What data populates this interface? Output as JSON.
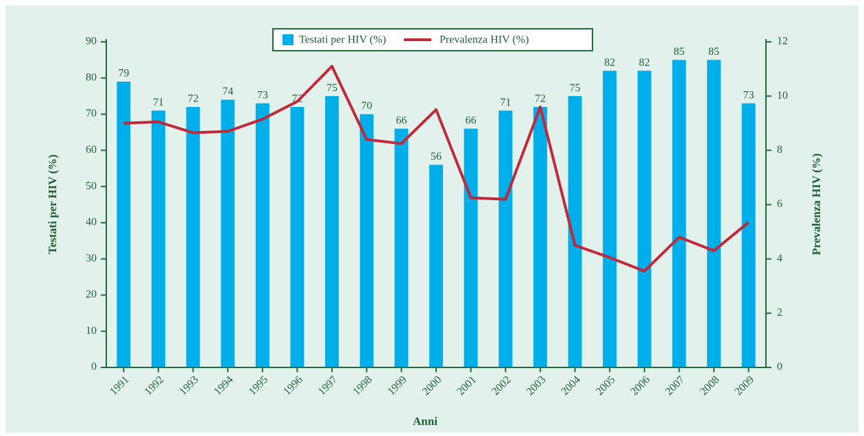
{
  "chart_data": {
    "type": "bar-line",
    "x_label": "Anni",
    "y_label": "Testati per HIV (%)",
    "y2_label": "Prevalenza HIV (%)",
    "categories": [
      "1991",
      "1992",
      "1993",
      "1994",
      "1995",
      "1996",
      "1997",
      "1998",
      "1999",
      "2000",
      "2001",
      "2002",
      "2003",
      "2004",
      "2005",
      "2006",
      "2007",
      "2008",
      "2009"
    ],
    "series": [
      {
        "name": "Testati per HIV (%)",
        "type": "bar",
        "color": "#00aeea",
        "values": [
          79,
          71,
          72,
          74,
          73,
          72,
          75,
          70,
          66,
          56,
          66,
          71,
          72,
          75,
          82,
          82,
          85,
          85,
          73
        ]
      },
      {
        "name": "Prevalenza HIV (%)",
        "type": "line",
        "axis": "y2",
        "color": "#c1283a",
        "values": [
          9.0,
          9.05,
          8.65,
          8.7,
          9.15,
          9.8,
          11.1,
          8.4,
          8.25,
          9.5,
          6.25,
          6.2,
          9.6,
          4.5,
          4.05,
          3.55,
          4.8,
          4.3,
          5.35
        ]
      }
    ],
    "ylim": [
      0,
      90
    ],
    "yticks": [
      0,
      10,
      20,
      30,
      40,
      50,
      60,
      70,
      80,
      90
    ],
    "y2lim": [
      0,
      12
    ],
    "y2ticks": [
      0,
      2,
      4,
      6,
      8,
      10,
      12
    ],
    "legend": "top",
    "grid": false
  }
}
